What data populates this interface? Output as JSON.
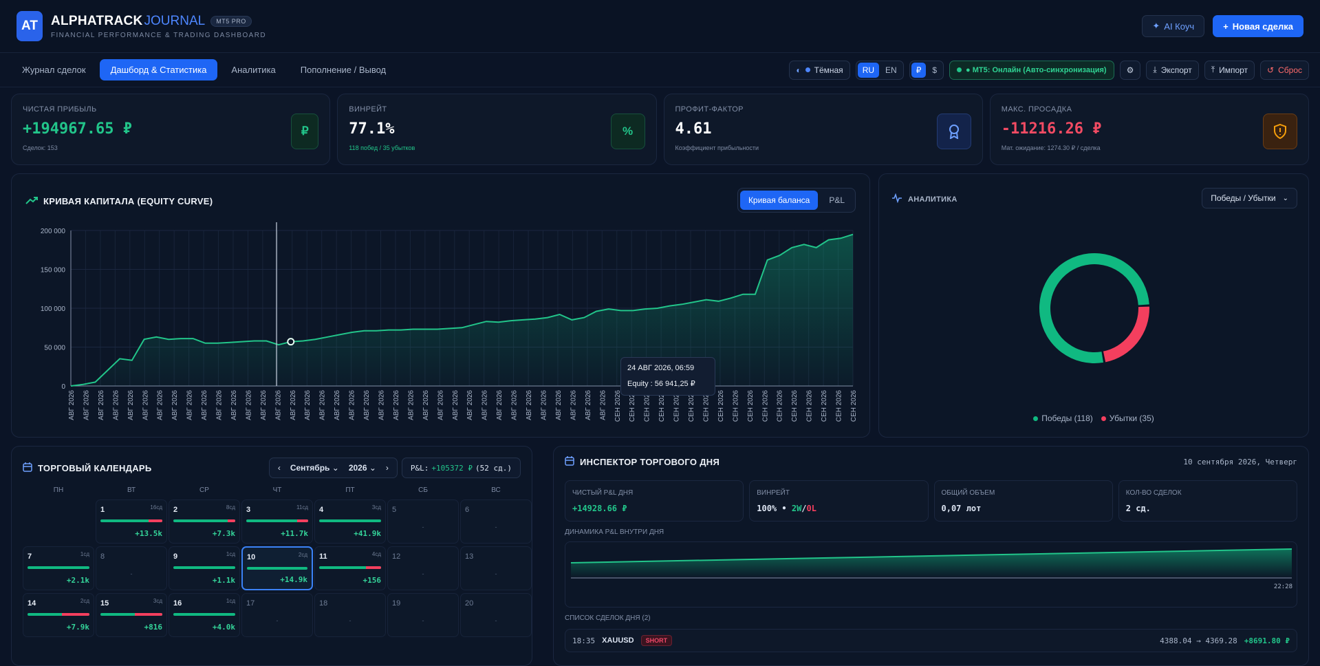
{
  "header": {
    "logo": "AT",
    "brand_main": "ALPHATRACK",
    "brand_accent": "JOURNAL",
    "badge": "MT5 PRO",
    "subtitle": "FINANCIAL PERFORMANCE & TRADING DASHBOARD",
    "coach_label": "AI Коуч",
    "new_deal_label": "Новая сделка"
  },
  "nav": {
    "tabs": [
      "Журнал сделок",
      "Дашборд & Статистика",
      "Аналитика",
      "Пополнение / Вывод"
    ],
    "active_tab": 1,
    "theme_label": "Тёмная",
    "lang": [
      "RU",
      "EN"
    ],
    "currency": [
      "₽",
      "$"
    ],
    "status_label": "● MT5: Онлайн (Авто-синхронизация)",
    "export_label": "Экспорт",
    "import_label": "Импорт",
    "reset_label": "Сброс"
  },
  "stats": [
    {
      "label": "ЧИСТАЯ ПРИБЫЛЬ",
      "value": "+194967.65 ₽",
      "sub": "Сделок: 153",
      "icon": "₽",
      "color": "#22c58a"
    },
    {
      "label": "ВИНРЕЙТ",
      "value": "77.1%",
      "sub": "118 побед / 35 убытков",
      "icon": "%",
      "color": "#ffffff"
    },
    {
      "label": "ПРОФИТ-ФАКТОР",
      "value": "4.61",
      "sub": "Коэффициент прибыльности",
      "icon": "award",
      "color": "#ffffff"
    },
    {
      "label": "МАКС. ПРОСАДКА",
      "value": "-11216.26 ₽",
      "sub": "Мат. ожидание: 1274.30 ₽ / сделка",
      "icon": "shield",
      "color": "#f24b63"
    }
  ],
  "equity": {
    "title": "КРИВАЯ КАПИТАЛА (EQUITY CURVE)",
    "toggle": [
      "Кривая баланса",
      "P&L"
    ],
    "tooltip_date": "24 АВГ 2026, 06:59",
    "tooltip_value": "Equity : 56 941,25 ₽"
  },
  "chart_data": {
    "type": "area",
    "title": "КРИВАЯ КАПИТАЛА (EQUITY CURVE)",
    "ylim": [
      0,
      200000
    ],
    "yticks": [
      "0",
      "50 000",
      "100 000",
      "150 000",
      "200 000"
    ],
    "x_label_months": {
      "aug_count": 37,
      "sep_count": 17,
      "aug": "АВГ 2026",
      "sep": "СЕН 2026"
    },
    "series": [
      {
        "values": [
          0,
          2000,
          5000,
          20000,
          35000,
          33000,
          60000,
          63000,
          60000,
          61000,
          61000,
          55000,
          55000,
          56000,
          57000,
          58000,
          58000,
          53000,
          56941,
          58000,
          60000,
          63000,
          66000,
          69000,
          71000,
          71000,
          72000,
          72000,
          73000,
          73000,
          73000,
          74000,
          75000,
          79000,
          83000,
          82000,
          84000,
          85000,
          86000,
          88000,
          92000,
          85000,
          88000,
          96000,
          99000,
          97000,
          97000,
          99000,
          100000,
          103000,
          105000,
          108000,
          111000,
          109000,
          113000,
          118000,
          118000,
          162000,
          168000,
          178000,
          182000,
          178000,
          188000,
          190000,
          195000
        ]
      }
    ]
  },
  "analytics": {
    "title": "АНАЛИТИКА",
    "dropdown": "Победы / Убытки",
    "wins_label": "Победы (118)",
    "losses_label": "Убытки (35)",
    "wins": 118,
    "losses": 35
  },
  "calendar": {
    "title": "ТОРГОВЫЙ КАЛЕНДАРЬ",
    "month": "Сентябрь",
    "year": "2026",
    "pnl_label": "P&L:",
    "pnl_value": "+105372 ₽",
    "pnl_count": "(52 сд.)",
    "dow": [
      "ПН",
      "ВТ",
      "СР",
      "ЧТ",
      "ПТ",
      "СБ",
      "ВС"
    ]
  },
  "inspector": {
    "title": "ИНСПЕКТОР ТОРГОВОГО ДНЯ",
    "date": "10 сентября 2026, Четверг",
    "metrics": [
      {
        "label": "ЧИСТЫЙ P&L ДНЯ",
        "value": "+14928.66 ₽"
      },
      {
        "label": "ВИНРЕЙТ",
        "value": "100% •",
        "w": "2W",
        "sep": "/",
        "l": "0L"
      },
      {
        "label": "ОБЩИЙ ОБЪЕМ",
        "value": "0,07 лот"
      },
      {
        "label": "КОЛ-ВО СДЕЛОК",
        "value": "2 сд."
      }
    ],
    "intraday_label": "ДИНАМИКА P&L ВНУТРИ ДНЯ",
    "intraday_time": "22:28",
    "trades_label": "СПИСОК СДЕЛОК ДНЯ (2)",
    "trade": {
      "time": "18:35",
      "symbol": "XAUUSD",
      "side": "SHORT",
      "prices": "4388.04 → 4369.28",
      "pnl": "+8691.80 ₽"
    }
  }
}
